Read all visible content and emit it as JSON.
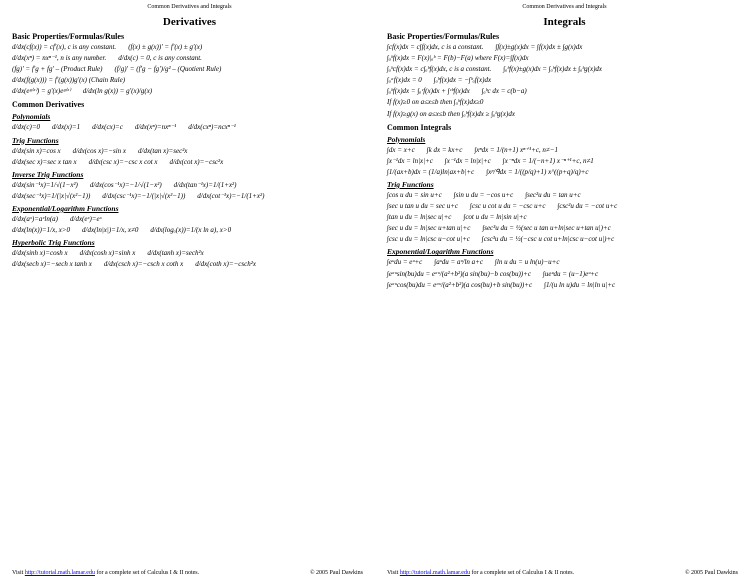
{
  "header": "Common Derivatives and Integrals",
  "left": {
    "title": "Derivatives",
    "s1": "Basic Properties/Formulas/Rules",
    "r1a": "d/dx(cf(x)) = cf'(x), c is any constant.",
    "r1b": "(f(x) ± g(x))' = f'(x) ± g'(x)",
    "r2a": "d/dx(xⁿ) = nxⁿ⁻¹, n is any number.",
    "r2b": "d/dx(c) = 0, c is any constant.",
    "r3a": "(fg)' = f'g + fg'  – (Product Rule)",
    "r3b": "(f/g)' = (f'g − fg')/g²  – (Quotient Rule)",
    "r4": "d/dx(f(g(x))) = f'(g(x))g'(x)   (Chain Rule)",
    "r5a": "d/dx(eᵍ⁽ˣ⁾) = g'(x)eᵍ⁽ˣ⁾",
    "r5b": "d/dx(ln g(x)) = g'(x)/g(x)",
    "s2": "Common Derivatives",
    "poly": "Polynomials",
    "p1": "d/dx(c)=0",
    "p2": "d/dx(x)=1",
    "p3": "d/dx(cx)=c",
    "p4": "d/dx(xⁿ)=nxⁿ⁻¹",
    "p5": "d/dx(cxⁿ)=ncxⁿ⁻¹",
    "trig": "Trig Functions",
    "t1": "d/dx(sin x)=cos x",
    "t2": "d/dx(cos x)=−sin x",
    "t3": "d/dx(tan x)=sec²x",
    "t4": "d/dx(sec x)=sec x tan x",
    "t5": "d/dx(csc x)=−csc x cot x",
    "t6": "d/dx(cot x)=−csc²x",
    "itrig": "Inverse Trig Functions",
    "it1": "d/dx(sin⁻¹x)=1/√(1−x²)",
    "it2": "d/dx(cos⁻¹x)=−1/√(1−x²)",
    "it3": "d/dx(tan⁻¹x)=1/(1+x²)",
    "it4": "d/dx(sec⁻¹x)=1/(|x|√(x²−1))",
    "it5": "d/dx(csc⁻¹x)=−1/(|x|√(x²−1))",
    "it6": "d/dx(cot⁻¹x)=−1/(1+x²)",
    "exp": "Exponential/Logarithm Functions",
    "e1": "d/dx(aˣ)=aˣln(a)",
    "e2": "d/dx(eˣ)=eˣ",
    "e3": "d/dx(ln(x))=1/x, x>0",
    "e4": "d/dx(ln|x|)=1/x, x≠0",
    "e5": "d/dx(logₐ(x))=1/(x ln a), x>0",
    "hyp": "Hyperbolic Trig Functions",
    "h1": "d/dx(sinh x)=cosh x",
    "h2": "d/dx(cosh x)=sinh x",
    "h3": "d/dx(tanh x)=sech²x",
    "h4": "d/dx(sech x)=−sech x tanh x",
    "h5": "d/dx(csch x)=−csch x coth x",
    "h6": "d/dx(coth x)=−csch²x"
  },
  "right": {
    "title": "Integrals",
    "s1": "Basic Properties/Formulas/Rules",
    "r1a": "∫cf(x)dx = c∫f(x)dx, c is a constant.",
    "r1b": "∫f(x)±g(x)dx = ∫f(x)dx ± ∫g(x)dx",
    "r2": "∫ₐᵇf(x)dx = F(x)|ₐᵇ = F(b)−F(a) where F(x)=∫f(x)dx",
    "r3a": "∫ₐᵇcf(x)dx = c∫ₐᵇf(x)dx, c is a constant.",
    "r3b": "∫ₐᵇf(x)±g(x)dx = ∫ₐᵇf(x)dx ± ∫ₐᵇg(x)dx",
    "r4a": "∫ₐᵃf(x)dx = 0",
    "r4b": "∫ₐᵇf(x)dx = −∫ᵇₐf(x)dx",
    "r5a": "∫ₐᵇf(x)dx = ∫ₐᶜf(x)dx + ∫ᶜᵇf(x)dx",
    "r5b": "∫ₐᵇc dx = c(b−a)",
    "r6": "If f(x)≥0 on a≤x≤b then ∫ₐᵇf(x)dx≥0",
    "r7": "If f(x)≥g(x) on a≤x≤b then ∫ₐᵇf(x)dx ≥ ∫ₐᵇg(x)dx",
    "s2": "Common Integrals",
    "poly": "Polynomials",
    "p1": "∫dx = x+c",
    "p2": "∫k dx = kx+c",
    "p3": "∫xⁿdx = 1/(n+1) xⁿ⁺¹+c, n≠−1",
    "p4": "∫x⁻¹dx = ln|x|+c",
    "p5": "∫x⁻¹dx = ln|x|+c",
    "p6": "∫x⁻ⁿdx = 1/(−n+1) x⁻ⁿ⁺¹+c, n≠1",
    "p7": "∫1/(ax+b)dx = (1/a)ln|ax+b|+c",
    "p8": "∫xᵖ/ᑫdx = 1/((p/q)+1) x^((p+q)/q)+c",
    "trig": "Trig Functions",
    "t1": "∫cos u du = sin u+c",
    "t2": "∫sin u du = −cos u+c",
    "t3": "∫sec²u du = tan u+c",
    "t4": "∫sec u tan u du = sec u+c",
    "t5": "∫csc u cot u du = −csc u+c",
    "t6": "∫csc²u du = −cot u+c",
    "t7": "∫tan u du = ln|sec u|+c",
    "t8": "∫cot u du = ln|sin u|+c",
    "t9": "∫sec u du = ln|sec u+tan u|+c",
    "t10": "∫sec³u du = ½(sec u tan u+ln|sec u+tan u|)+c",
    "t11": "∫csc u du = ln|csc u−cot u|+c",
    "t12": "∫csc³u du = ½(−csc u cot u+ln|csc u−cot u|)+c",
    "exp": "Exponential/Logarithm Functions",
    "e1": "∫eᵘdu = eᵘ+c",
    "e2": "∫aᵘdu = aᵘ/ln a+c",
    "e3": "∫ln u du = u ln(u)−u+c",
    "e4": "∫eᵃᵘsin(bu)du = eᵃᵘ/(a²+b²)(a sin(bu)−b cos(bu))+c",
    "e5": "∫ueᵘdu = (u−1)eᵘ+c",
    "e6": "∫eᵃᵘcos(bu)du = eᵃᵘ/(a²+b²)(a cos(bu)+b sin(bu))+c",
    "e7": "∫1/(u ln u)du = ln|ln u|+c"
  },
  "footer": {
    "visit": "Visit ",
    "url": "http://tutorial.math.lamar.edu",
    "rest": " for a complete set of Calculus I & II notes.",
    "copy": "© 2005 Paul Dawkins"
  }
}
